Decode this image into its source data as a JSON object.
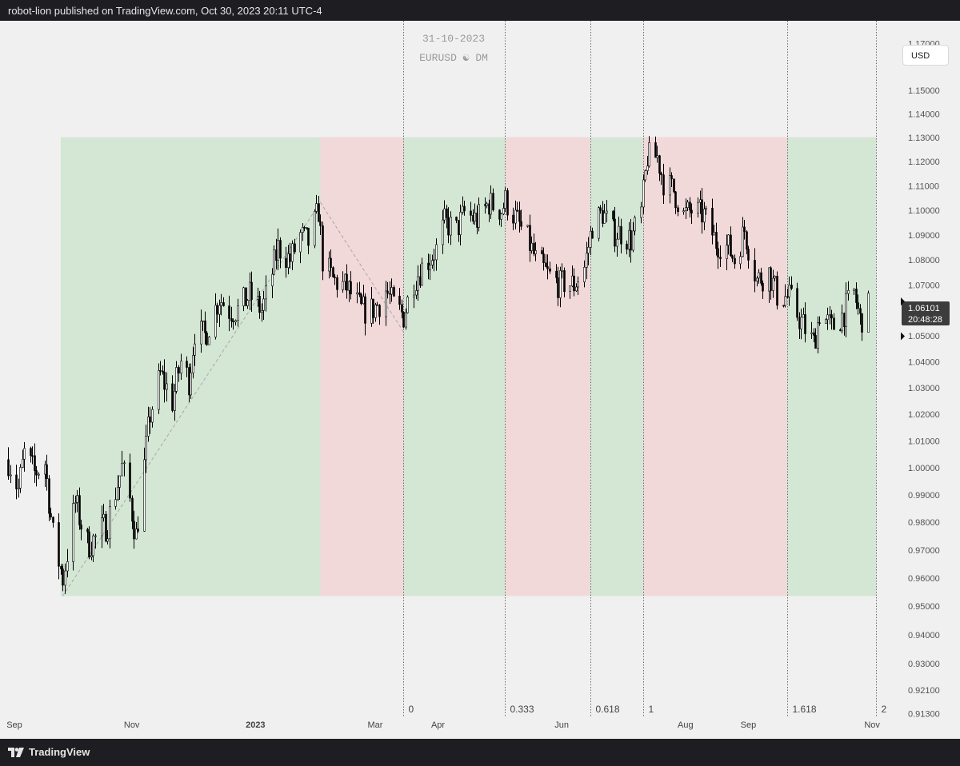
{
  "header": {
    "publish_info": "robot-lion published on TradingView.com, Oct 30, 2023 20:11 UTC-4"
  },
  "footer": {
    "brand": "TradingView",
    "logo_icon": "tradingview-logo-icon"
  },
  "chart_data": {
    "type": "candlestick",
    "title": "31-10-2023",
    "subtitle": "EURUSD ☯ DM",
    "currency_button": "USD",
    "y_axis": {
      "scale": "log",
      "ticks": [
        "1.17000",
        "1.15000",
        "1.14000",
        "1.13000",
        "1.12000",
        "1.11000",
        "1.10000",
        "1.09000",
        "1.08000",
        "1.07000",
        "1.05000",
        "1.04000",
        "1.03000",
        "1.02000",
        "1.01000",
        "1.00000",
        "0.99000",
        "0.98000",
        "0.97000",
        "0.96000",
        "0.95000",
        "0.94000",
        "0.93000",
        "0.92100",
        "0.91300"
      ],
      "range": [
        0.912,
        1.18
      ]
    },
    "x_axis": {
      "labels": [
        "Sep",
        "Nov",
        "2023",
        "Mar",
        "Apr",
        "Jun",
        "Aug",
        "Sep",
        "Nov"
      ],
      "range": [
        "2022-09-01",
        "2023-11-12"
      ]
    },
    "last_price": {
      "value": "1.06101",
      "countdown": "20:48:28",
      "marker_value": 1.0499
    },
    "fib_time_zones": {
      "labels": [
        "0",
        "0.333",
        "0.618",
        "1",
        "1.618",
        "2"
      ],
      "dates": [
        "2023-03-15",
        "2023-05-04",
        "2023-06-15",
        "2023-07-11",
        "2023-09-20",
        "2023-11-03"
      ]
    },
    "zones": [
      {
        "from": "2022-09-27",
        "to": "2023-02-02",
        "color": "green",
        "low": 0.9536,
        "high": 1.1302
      },
      {
        "from": "2023-02-02",
        "to": "2023-03-15",
        "color": "red",
        "low": 0.9536,
        "high": 1.1302
      },
      {
        "from": "2023-03-15",
        "to": "2023-05-04",
        "color": "green",
        "low": 0.9536,
        "high": 1.1302
      },
      {
        "from": "2023-05-04",
        "to": "2023-06-15",
        "color": "red",
        "low": 0.9536,
        "high": 1.1302
      },
      {
        "from": "2023-06-15",
        "to": "2023-07-11",
        "color": "green",
        "low": 0.9536,
        "high": 1.1302
      },
      {
        "from": "2023-07-11",
        "to": "2023-09-20",
        "color": "red",
        "low": 0.9536,
        "high": 1.1302
      },
      {
        "from": "2023-09-20",
        "to": "2023-11-03",
        "color": "green",
        "low": 0.9536,
        "high": 1.1302
      }
    ],
    "trend_lines": [
      {
        "from": [
          "2022-09-28",
          0.9536
        ],
        "to": [
          "2023-02-02",
          1.1033
        ]
      },
      {
        "from": [
          "2023-02-02",
          1.1033
        ],
        "to": [
          "2023-03-15",
          1.0516
        ]
      }
    ],
    "price_path": [
      [
        "2022-09-01",
        1.003
      ],
      [
        "2022-09-06",
        0.992
      ],
      [
        "2022-09-09",
        1.005
      ],
      [
        "2022-09-14",
        0.998
      ],
      [
        "2022-09-19",
        1.002
      ],
      [
        "2022-09-23",
        0.975
      ],
      [
        "2022-09-28",
        0.96
      ],
      [
        "2022-10-04",
        0.987
      ],
      [
        "2022-10-10",
        0.972
      ],
      [
        "2022-10-14",
        0.974
      ],
      [
        "2022-10-20",
        0.98
      ],
      [
        "2022-10-27",
        1.0
      ],
      [
        "2022-10-31",
        0.988
      ],
      [
        "2022-11-03",
        0.975
      ],
      [
        "2022-11-10",
        1.02
      ],
      [
        "2022-11-15",
        1.035
      ],
      [
        "2022-11-21",
        1.025
      ],
      [
        "2022-11-25",
        1.04
      ],
      [
        "2022-11-29",
        1.033
      ],
      [
        "2022-12-02",
        1.052
      ],
      [
        "2022-12-07",
        1.05
      ],
      [
        "2022-12-14",
        1.065
      ],
      [
        "2022-12-19",
        1.06
      ],
      [
        "2022-12-23",
        1.06
      ],
      [
        "2022-12-29",
        1.066
      ],
      [
        "2023-01-04",
        1.06
      ],
      [
        "2023-01-06",
        1.065
      ],
      [
        "2023-01-12",
        1.085
      ],
      [
        "2023-01-18",
        1.08
      ],
      [
        "2023-01-23",
        1.09
      ],
      [
        "2023-01-27",
        1.087
      ],
      [
        "2023-02-01",
        1.1
      ],
      [
        "2023-02-03",
        1.08
      ],
      [
        "2023-02-08",
        1.072
      ],
      [
        "2023-02-15",
        1.069
      ],
      [
        "2023-02-22",
        1.06
      ],
      [
        "2023-02-27",
        1.06
      ],
      [
        "2023-03-03",
        1.063
      ],
      [
        "2023-03-06",
        1.068
      ],
      [
        "2023-03-10",
        1.062
      ],
      [
        "2023-03-15",
        1.058
      ],
      [
        "2023-03-20",
        1.072
      ],
      [
        "2023-03-24",
        1.077
      ],
      [
        "2023-03-31",
        1.084
      ],
      [
        "2023-04-04",
        1.095
      ],
      [
        "2023-04-10",
        1.092
      ],
      [
        "2023-04-14",
        1.099
      ],
      [
        "2023-04-20",
        1.096
      ],
      [
        "2023-04-26",
        1.103
      ],
      [
        "2023-05-02",
        1.1
      ],
      [
        "2023-05-04",
        1.104
      ],
      [
        "2023-05-09",
        1.097
      ],
      [
        "2023-05-15",
        1.088
      ],
      [
        "2023-05-19",
        1.08
      ],
      [
        "2023-05-25",
        1.074
      ],
      [
        "2023-05-31",
        1.07
      ],
      [
        "2023-06-02",
        1.071
      ],
      [
        "2023-06-07",
        1.07
      ],
      [
        "2023-06-12",
        1.077
      ],
      [
        "2023-06-16",
        1.094
      ],
      [
        "2023-06-21",
        1.099
      ],
      [
        "2023-06-26",
        1.091
      ],
      [
        "2023-06-30",
        1.091
      ],
      [
        "2023-07-05",
        1.088
      ],
      [
        "2023-07-10",
        1.099
      ],
      [
        "2023-07-13",
        1.122
      ],
      [
        "2023-07-18",
        1.122
      ],
      [
        "2023-07-21",
        1.112
      ],
      [
        "2023-07-26",
        1.108
      ],
      [
        "2023-07-31",
        1.098
      ],
      [
        "2023-08-04",
        1.1
      ],
      [
        "2023-08-10",
        1.098
      ],
      [
        "2023-08-16",
        1.087
      ],
      [
        "2023-08-22",
        1.085
      ],
      [
        "2023-08-25",
        1.08
      ],
      [
        "2023-08-30",
        1.092
      ],
      [
        "2023-09-05",
        1.072
      ],
      [
        "2023-09-11",
        1.075
      ],
      [
        "2023-09-15",
        1.066
      ],
      [
        "2023-09-21",
        1.065
      ],
      [
        "2023-09-26",
        1.057
      ],
      [
        "2023-10-03",
        1.047
      ],
      [
        "2023-10-06",
        1.059
      ],
      [
        "2023-10-12",
        1.053
      ],
      [
        "2023-10-17",
        1.058
      ],
      [
        "2023-10-23",
        1.067
      ],
      [
        "2023-10-26",
        1.056
      ],
      [
        "2023-10-30",
        1.061
      ]
    ]
  }
}
